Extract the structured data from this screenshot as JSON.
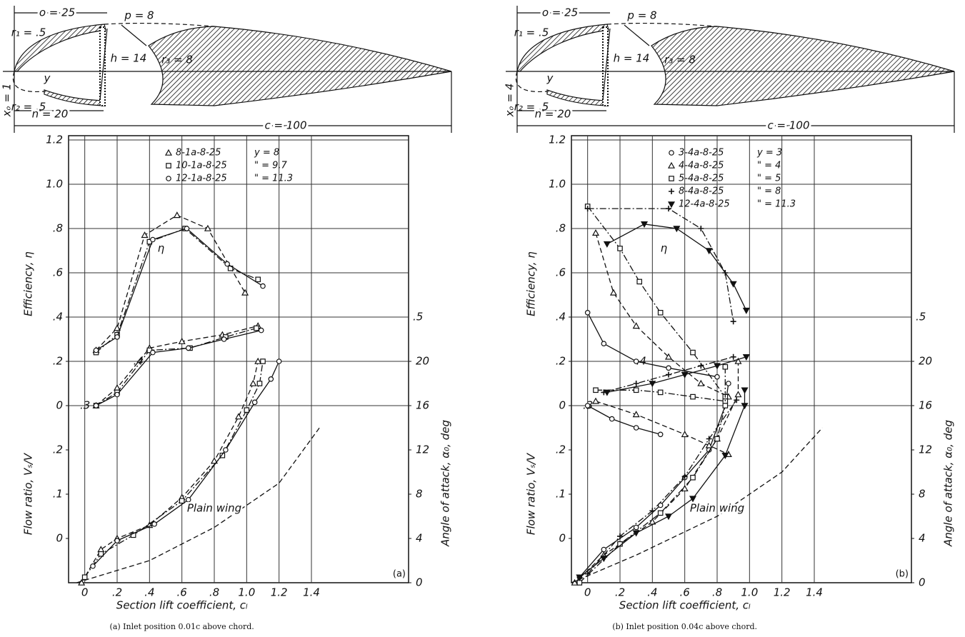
{
  "chart_data": [
    {
      "type": "line",
      "caption": "(a) Inlet position 0.01c above chord.",
      "panel_label": "(a)",
      "xlabel": "Section lift coefficient, cₗ",
      "ylabel": "Efficiency, η",
      "y2label": "Flow ratio, Vₛ/V",
      "y3label": "Angle of attack, α₀, deg",
      "eta_label": "η",
      "diagram_labels": [
        "o = 25",
        "p = 8",
        "r₁ = .5",
        "h = 14",
        "r₃ = 8",
        "y",
        "r₂ = .5",
        "n = 20",
        "xₒ = 1",
        "c = 100"
      ],
      "xlim": [
        -0.1,
        2.0
      ],
      "xticks": [
        0,
        {
          "value": 0.2,
          "label": ".2"
        },
        {
          "value": 0.4,
          "label": ".4"
        },
        {
          "value": 0.6,
          "label": ".6"
        },
        {
          "value": 0.8,
          "label": ".8"
        },
        {
          "value": 1,
          "label": "1.0"
        },
        1.2,
        1.4
      ],
      "ylim": [
        -0.8,
        1.2
      ],
      "yticks": [
        0,
        {
          "value": 0.2,
          "label": ".2"
        },
        {
          "value": 0.4,
          "label": ".4"
        },
        {
          "value": 0.6,
          "label": ".6"
        },
        {
          "value": 0.8,
          "label": ".8"
        },
        {
          "value": 1,
          "label": "1.0"
        },
        1.2
      ],
      "y2lim": [
        -0.1,
        0.9
      ],
      "y2ticks": [
        0,
        {
          "value": 0.1,
          "label": ".1"
        },
        {
          "value": 0.2,
          "label": ".2"
        },
        {
          "value": 0.3,
          "label": ".3"
        },
        {
          "value": 0.4,
          "label": ".4"
        },
        {
          "value": 0.5,
          "label": ".5"
        }
      ],
      "y3lim": [
        0,
        40
      ],
      "y3ticks": [
        0,
        4,
        8,
        12,
        16,
        20
      ],
      "grid": true,
      "series": [
        {
          "name": "8-1a-8-25",
          "note": "y = 8",
          "marker": "triangle",
          "dash": "dashed",
          "color": "#111",
          "curves": [
            {
              "axis": "y",
              "x": [
                0.07,
                0.2,
                0.37,
                0.57,
                0.76,
                0.99
              ],
              "values": [
                0.25,
                0.35,
                0.77,
                0.86,
                0.8,
                0.51
              ]
            },
            {
              "axis": "y2",
              "x": [
                0.07,
                0.2,
                0.4,
                0.6,
                0.85,
                1.07
              ],
              "values": [
                0.3,
                0.34,
                0.43,
                0.445,
                0.46,
                0.48
              ]
            },
            {
              "axis": "y3",
              "x": [
                -0.02,
                0.1,
                0.2,
                0.4,
                0.6,
                0.8,
                0.95,
                1.04,
                1.07
              ],
              "values": [
                0,
                3,
                4,
                5.2,
                7.7,
                11,
                15,
                18,
                20
              ]
            }
          ]
        },
        {
          "name": "10-1a-8-25",
          "note": "\" = 9.7",
          "marker": "square",
          "dash": "dashdot",
          "color": "#111",
          "curves": [
            {
              "axis": "y",
              "x": [
                0.07,
                0.2,
                0.4,
                0.62,
                0.9,
                1.07
              ],
              "values": [
                0.24,
                0.32,
                0.74,
                0.8,
                0.62,
                0.57
              ]
            },
            {
              "axis": "y2",
              "x": [
                0.07,
                0.2,
                0.4,
                0.65,
                0.87,
                1.06
              ],
              "values": [
                0.3,
                0.33,
                0.425,
                0.43,
                0.455,
                0.475
              ]
            },
            {
              "axis": "y3",
              "x": [
                0,
                0.1,
                0.3,
                0.6,
                0.85,
                1,
                1.08,
                1.1
              ],
              "values": [
                0.5,
                2.6,
                4.3,
                7.4,
                11.5,
                15.6,
                18,
                20
              ]
            }
          ]
        },
        {
          "name": "12-1a-8-25",
          "note": "\" = 11.3",
          "marker": "circle",
          "dash": "solid",
          "color": "#111",
          "curves": [
            {
              "axis": "y",
              "x": [
                0.07,
                0.2,
                0.42,
                0.63,
                0.88,
                1.1
              ],
              "values": [
                0.25,
                0.31,
                0.75,
                0.8,
                0.64,
                0.54
              ]
            },
            {
              "axis": "y2",
              "x": [
                0.07,
                0.2,
                0.42,
                0.64,
                0.86,
                1.09
              ],
              "values": [
                0.3,
                0.325,
                0.42,
                0.43,
                0.45,
                0.47
              ]
            },
            {
              "axis": "y3",
              "x": [
                0.05,
                0.2,
                0.43,
                0.64,
                0.87,
                1.05,
                1.15,
                1.2
              ],
              "values": [
                1.5,
                3.8,
                5.3,
                7.5,
                12,
                16.3,
                18.4,
                20
              ]
            }
          ]
        }
      ],
      "plain_wing": {
        "label": "Plain wing",
        "axis": "y3",
        "x": [
          -0.05,
          0.4,
          0.8,
          1.2,
          1.45
        ],
        "values": [
          0,
          2,
          5,
          9,
          14
        ]
      }
    },
    {
      "type": "line",
      "caption": "(b) Inlet position 0.04c above chord.",
      "panel_label": "(b)",
      "xlabel": "Section lift coefficient, cₗ",
      "ylabel": "Efficiency, η",
      "y2label": "Flow ratio, Vₛ/V",
      "y3label": "Angle of attack, α₀, deg",
      "eta_label": "η",
      "diagram_labels": [
        "o = 25",
        "p = 8",
        "r₁ = .5",
        "h = 14",
        "r₃ = 8",
        "y",
        "r₂ = .5",
        "n = 20",
        "xₒ = 4",
        "c = 100"
      ],
      "xlim": [
        -0.1,
        2.0
      ],
      "xticks": [
        0,
        {
          "value": 0.2,
          "label": ".2"
        },
        {
          "value": 0.4,
          "label": ".4"
        },
        {
          "value": 0.6,
          "label": ".6"
        },
        {
          "value": 0.8,
          "label": ".8"
        },
        {
          "value": 1,
          "label": "1.0"
        },
        1.2,
        1.4
      ],
      "ylim": [
        -0.8,
        1.2
      ],
      "yticks": [
        0,
        {
          "value": 0.2,
          "label": ".2"
        },
        {
          "value": 0.4,
          "label": ".4"
        },
        {
          "value": 0.6,
          "label": ".6"
        },
        {
          "value": 0.8,
          "label": ".8"
        },
        {
          "value": 1,
          "label": "1.0"
        },
        1.2
      ],
      "y2lim": [
        -0.1,
        0.9
      ],
      "y2ticks": [
        0,
        {
          "value": 0.1,
          "label": ".1"
        },
        {
          "value": 0.2,
          "label": ".2"
        },
        {
          "value": 0.3,
          "label": ".3"
        },
        {
          "value": 0.4,
          "label": ".4"
        },
        {
          "value": 0.5,
          "label": ".5"
        }
      ],
      "y3lim": [
        0,
        40
      ],
      "y3ticks": [
        0,
        4,
        8,
        12,
        16,
        20
      ],
      "grid": true,
      "series": [
        {
          "name": "3-4a-8-25",
          "note": "y = 3",
          "marker": "circle",
          "dash": "solid",
          "color": "#111",
          "curves": [
            {
              "axis": "y",
              "x": [
                0,
                0.1,
                0.3,
                0.5,
                0.8
              ],
              "values": [
                0.42,
                0.28,
                0.2,
                0.17,
                0.13
              ]
            },
            {
              "axis": "y2",
              "x": [
                0,
                0.15,
                0.3,
                0.45
              ],
              "values": [
                0.3,
                0.27,
                0.25,
                0.235
              ]
            },
            {
              "axis": "y3",
              "x": [
                -0.05,
                0.1,
                0.3,
                0.45,
                0.6,
                0.75,
                0.85,
                0.87
              ],
              "values": [
                0.5,
                3,
                5,
                7,
                9.5,
                12,
                16,
                18
              ]
            }
          ]
        },
        {
          "name": "4-4a-8-25",
          "note": "\" = 4",
          "marker": "triangle",
          "dash": "dashed",
          "color": "#111",
          "curves": [
            {
              "axis": "y",
              "x": [
                0.05,
                0.16,
                0.3,
                0.5,
                0.7,
                0.87
              ],
              "values": [
                0.78,
                0.51,
                0.36,
                0.22,
                0.1,
                0.04
              ]
            },
            {
              "axis": "y2",
              "x": [
                0.05,
                0.3,
                0.6,
                0.75,
                0.87
              ],
              "values": [
                0.31,
                0.28,
                0.235,
                0.21,
                0.19
              ]
            },
            {
              "axis": "y3",
              "x": [
                -0.08,
                0.1,
                0.4,
                0.6,
                0.8,
                0.93,
                0.93
              ],
              "values": [
                0,
                2.5,
                5.5,
                8.5,
                13,
                17,
                20
              ]
            }
          ]
        },
        {
          "name": "5-4a-8-25",
          "note": "\" = 5",
          "marker": "square",
          "dash": "dashdot",
          "color": "#111",
          "curves": [
            {
              "axis": "y",
              "x": [
                0,
                0.2,
                0.32,
                0.45,
                0.65,
                0.85
              ],
              "values": [
                0.9,
                0.71,
                0.56,
                0.42,
                0.24,
                0.04
              ]
            },
            {
              "axis": "y2",
              "x": [
                0.05,
                0.3,
                0.45,
                0.65,
                0.85
              ],
              "values": [
                0.335,
                0.335,
                0.33,
                0.32,
                0.31
              ]
            },
            {
              "axis": "y3",
              "x": [
                -0.05,
                0.2,
                0.45,
                0.65,
                0.8,
                0.85,
                0.85
              ],
              "values": [
                0,
                3.5,
                6.3,
                9.5,
                13,
                16,
                19.5
              ]
            }
          ]
        },
        {
          "name": "8-4a-8-25",
          "note": "\" = 8",
          "marker": "plus",
          "dash": "dashdot",
          "color": "#111",
          "curves": [
            {
              "axis": "y",
              "x": [
                0,
                0.5,
                0.7,
                0.85,
                0.9
              ],
              "values": [
                0.89,
                0.89,
                0.8,
                0.6,
                0.38
              ]
            },
            {
              "axis": "y2",
              "x": [
                0.1,
                0.3,
                0.5,
                0.7,
                0.9
              ],
              "values": [
                0.33,
                0.35,
                0.37,
                0.39,
                0.41
              ]
            },
            {
              "axis": "y3",
              "x": [
                0,
                0.2,
                0.4,
                0.6,
                0.75,
                0.92
              ],
              "values": [
                0.8,
                4.2,
                6.5,
                9.6,
                13,
                16.5
              ]
            }
          ]
        },
        {
          "name": "12-4a-8-25",
          "note": "\" = 11.3",
          "marker": "down-triangle",
          "dash": "solid",
          "color": "#111",
          "curves": [
            {
              "axis": "y",
              "x": [
                0.12,
                0.35,
                0.55,
                0.75,
                0.9,
                0.98
              ],
              "values": [
                0.73,
                0.82,
                0.8,
                0.7,
                0.55,
                0.43
              ]
            },
            {
              "axis": "y2",
              "x": [
                0.12,
                0.4,
                0.6,
                0.8,
                0.98
              ],
              "values": [
                0.33,
                0.35,
                0.37,
                0.39,
                0.41
              ]
            },
            {
              "axis": "y3",
              "x": [
                -0.05,
                0.1,
                0.3,
                0.5,
                0.65,
                0.85,
                0.97,
                0.97
              ],
              "values": [
                0.5,
                2.2,
                4.5,
                6,
                7.6,
                11.5,
                16,
                17.4
              ]
            }
          ]
        }
      ],
      "plain_wing": {
        "label": "Plain wing",
        "axis": "y3",
        "x": [
          -0.1,
          0.3,
          0.8,
          1.2,
          1.45
        ],
        "values": [
          0,
          2.5,
          6,
          10,
          14
        ]
      }
    }
  ]
}
